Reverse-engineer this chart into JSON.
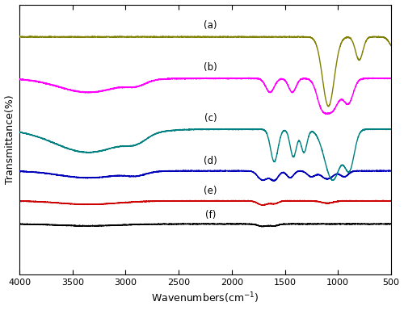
{
  "title": "",
  "xlabel": "Wavenumbers(cm$^{-1}$)",
  "ylabel": "Transmittance(%)",
  "xmin": 500,
  "xmax": 4000,
  "xticks": [
    4000,
    3500,
    3000,
    2500,
    2000,
    1500,
    1000,
    500
  ],
  "labels": [
    "(a)",
    "(b)",
    "(c)",
    "(d)",
    "(e)",
    "(f)"
  ],
  "colors": [
    "#808000",
    "#ff00ff",
    "#008080",
    "#0000bb",
    "#cc0000",
    "#000000"
  ],
  "background": "#ffffff",
  "linewidth": 1.0
}
